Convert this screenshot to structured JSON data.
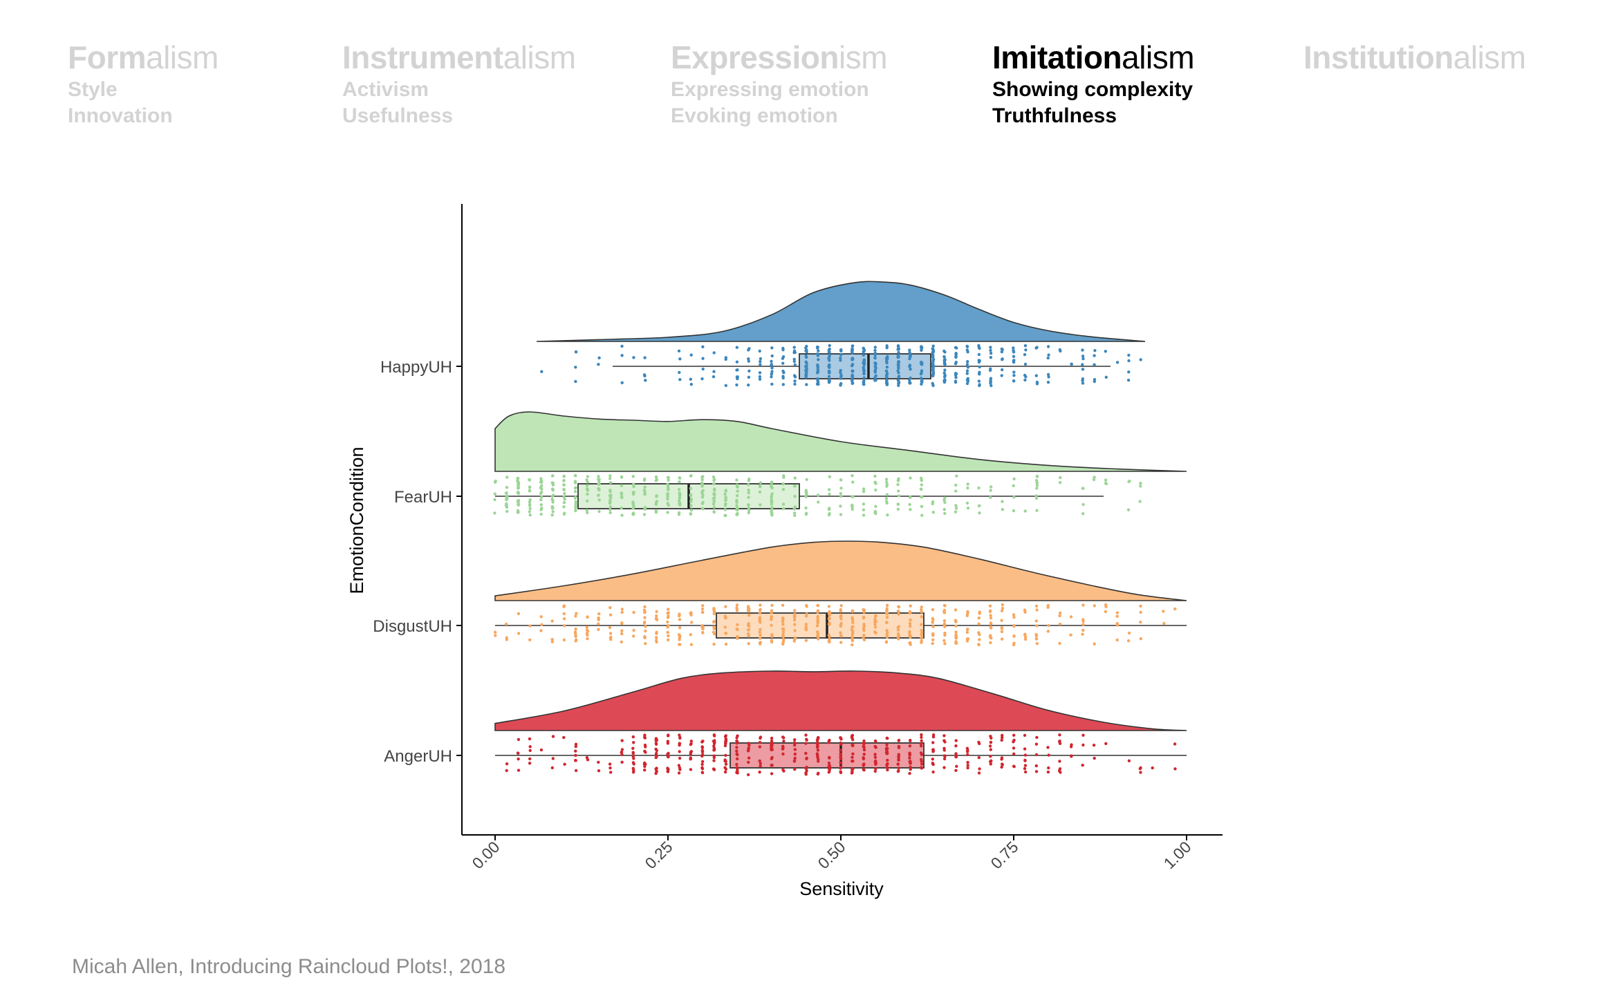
{
  "header": {
    "columns": [
      {
        "bold": "Form",
        "rest": "alism",
        "subs": [
          "Style",
          "Innovation"
        ],
        "active": false
      },
      {
        "bold": "Instrument",
        "rest": "alism",
        "subs": [
          "Activism",
          "Usefulness"
        ],
        "active": false
      },
      {
        "bold": "Expression",
        "rest": "ism",
        "subs": [
          "Expressing emotion",
          "Evoking emotion"
        ],
        "active": false
      },
      {
        "bold": "Imitation",
        "rest": "alism",
        "subs": [
          "Showing complexity",
          "Truthfulness"
        ],
        "active": true
      },
      {
        "bold": "Institution",
        "rest": "alism",
        "subs": [],
        "active": false
      }
    ]
  },
  "chart_data": {
    "type": "raincloud",
    "xlabel": "Sensitivity",
    "ylabel": "EmotionCondition",
    "xlim": [
      0,
      1
    ],
    "x_ticks": [
      "0.00",
      "0.25",
      "0.50",
      "0.75",
      "1.00"
    ],
    "categories": [
      "HappyUH",
      "FearUH",
      "DisgustUH",
      "AngerUH"
    ],
    "grid": false,
    "legend": "none",
    "series": [
      {
        "name": "HappyUH",
        "color": "#3c87bd",
        "fill": "#639fca",
        "range": [
          0.06,
          0.94
        ],
        "box": {
          "min": 0.17,
          "q1": 0.44,
          "median": 0.54,
          "q3": 0.63,
          "max": 0.89
        },
        "density": [
          [
            0.06,
            0
          ],
          [
            0.15,
            0.03
          ],
          [
            0.25,
            0.07
          ],
          [
            0.33,
            0.17
          ],
          [
            0.4,
            0.45
          ],
          [
            0.46,
            0.82
          ],
          [
            0.52,
            0.99
          ],
          [
            0.56,
            1.0
          ],
          [
            0.6,
            0.95
          ],
          [
            0.65,
            0.78
          ],
          [
            0.7,
            0.54
          ],
          [
            0.75,
            0.32
          ],
          [
            0.8,
            0.18
          ],
          [
            0.86,
            0.08
          ],
          [
            0.94,
            0
          ]
        ]
      },
      {
        "name": "FearUH",
        "color": "#9cd596",
        "fill": "#bfe5b7",
        "range": [
          0.0,
          1.0
        ],
        "box": {
          "min": 0.0,
          "q1": 0.12,
          "median": 0.28,
          "q3": 0.44,
          "max": 0.88
        },
        "density": [
          [
            0.0,
            0.72
          ],
          [
            0.02,
            0.93
          ],
          [
            0.05,
            1.0
          ],
          [
            0.1,
            0.93
          ],
          [
            0.15,
            0.88
          ],
          [
            0.2,
            0.86
          ],
          [
            0.25,
            0.84
          ],
          [
            0.3,
            0.87
          ],
          [
            0.35,
            0.84
          ],
          [
            0.4,
            0.72
          ],
          [
            0.5,
            0.5
          ],
          [
            0.6,
            0.35
          ],
          [
            0.7,
            0.2
          ],
          [
            0.8,
            0.1
          ],
          [
            0.9,
            0.04
          ],
          [
            1.0,
            0
          ]
        ]
      },
      {
        "name": "DisgustUH",
        "color": "#f7a75f",
        "fill": "#fbbd86",
        "range": [
          0.0,
          1.0
        ],
        "box": {
          "min": 0.0,
          "q1": 0.32,
          "median": 0.48,
          "q3": 0.62,
          "max": 1.0
        },
        "density": [
          [
            0.0,
            0.08
          ],
          [
            0.1,
            0.25
          ],
          [
            0.2,
            0.45
          ],
          [
            0.3,
            0.68
          ],
          [
            0.4,
            0.9
          ],
          [
            0.46,
            0.98
          ],
          [
            0.51,
            1.0
          ],
          [
            0.56,
            0.98
          ],
          [
            0.62,
            0.9
          ],
          [
            0.7,
            0.7
          ],
          [
            0.78,
            0.47
          ],
          [
            0.86,
            0.26
          ],
          [
            0.93,
            0.1
          ],
          [
            1.0,
            0
          ]
        ]
      },
      {
        "name": "AngerUH",
        "color": "#d1262f",
        "fill": "#dd4a55",
        "range": [
          0.0,
          1.0
        ],
        "box": {
          "min": 0.0,
          "q1": 0.34,
          "median": 0.5,
          "q3": 0.62,
          "max": 1.0
        },
        "density": [
          [
            0.0,
            0.12
          ],
          [
            0.1,
            0.33
          ],
          [
            0.2,
            0.65
          ],
          [
            0.27,
            0.88
          ],
          [
            0.33,
            0.97
          ],
          [
            0.4,
            1.0
          ],
          [
            0.46,
            0.99
          ],
          [
            0.52,
            1.0
          ],
          [
            0.58,
            0.97
          ],
          [
            0.64,
            0.88
          ],
          [
            0.72,
            0.62
          ],
          [
            0.8,
            0.34
          ],
          [
            0.88,
            0.14
          ],
          [
            0.95,
            0.03
          ],
          [
            1.0,
            0
          ]
        ]
      }
    ]
  },
  "caption": "Micah Allen, Introducing Raincloud Plots!, 2018"
}
